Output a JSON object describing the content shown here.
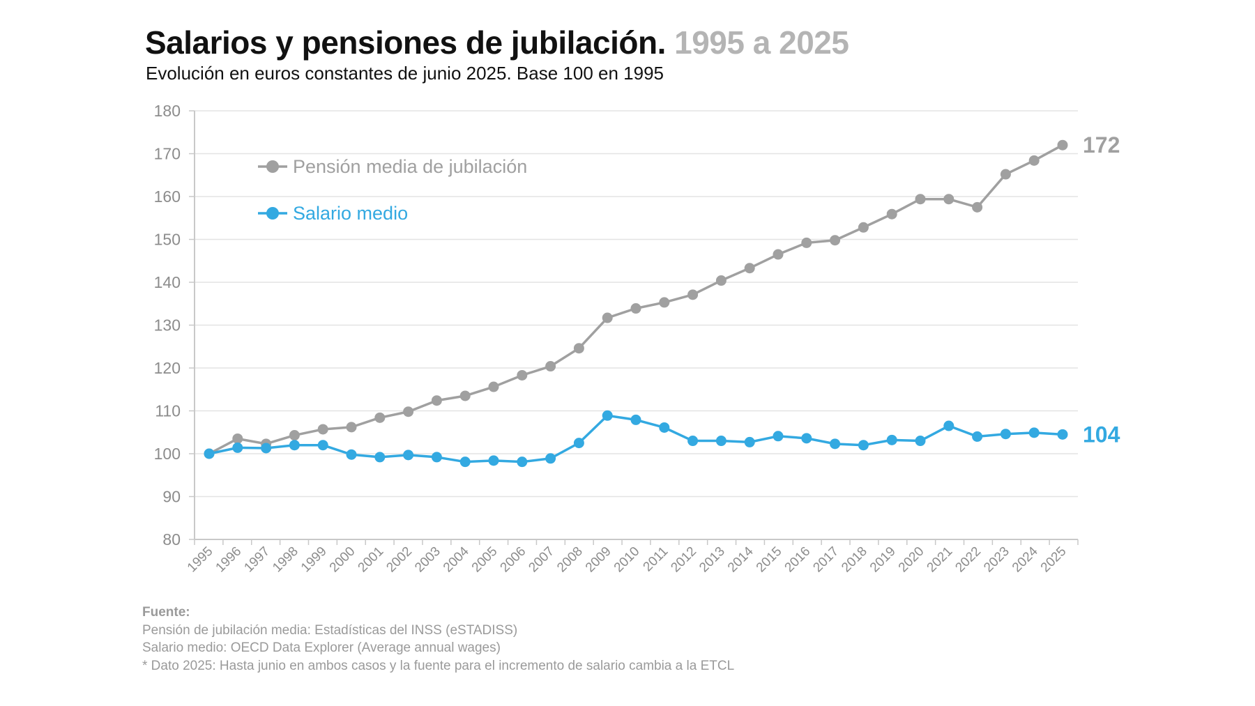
{
  "title": "Salarios y pensiones de jubilación.",
  "title_range": "1995 a 2025",
  "subtitle": "Evolución en euros constantes de junio 2025. Base 100 en 1995",
  "chart_data": {
    "type": "line",
    "x": [
      "1995",
      "1996",
      "1997",
      "1998",
      "1999",
      "2000",
      "2001",
      "2002",
      "2003",
      "2004",
      "2005",
      "2006",
      "2007",
      "2008",
      "2009",
      "2010",
      "2011",
      "2012",
      "2013",
      "2014",
      "2015",
      "2016",
      "2017",
      "2018",
      "2019",
      "2020",
      "2021",
      "2022",
      "2023",
      "2024",
      "2025"
    ],
    "ylim": [
      80,
      180
    ],
    "yticks": [
      80,
      90,
      100,
      110,
      120,
      130,
      140,
      150,
      160,
      170,
      180
    ],
    "grid": true,
    "legend": "top-left",
    "series": [
      {
        "name": "Pensión media de jubilación",
        "color": "#a0a0a0",
        "end_label": "172",
        "values": [
          100,
          103.5,
          102.3,
          104.3,
          105.7,
          106.2,
          108.4,
          109.8,
          112.4,
          113.5,
          115.6,
          118.3,
          120.4,
          124.6,
          131.7,
          133.9,
          135.3,
          137.1,
          140.4,
          143.3,
          146.5,
          149.2,
          149.8,
          152.8,
          155.9,
          159.4,
          159.4,
          157.5,
          165.2,
          168.4,
          172
        ]
      },
      {
        "name": "Salario medio",
        "color": "#33a9e1",
        "end_label": "104",
        "values": [
          100,
          101.4,
          101.3,
          102.0,
          102.0,
          99.8,
          99.2,
          99.7,
          99.2,
          98.1,
          98.4,
          98.1,
          98.9,
          102.5,
          108.9,
          107.9,
          106.1,
          103.0,
          103.0,
          102.7,
          104.1,
          103.6,
          102.3,
          102.0,
          103.2,
          103.0,
          106.5,
          104.0,
          104.6,
          104.9,
          104.5
        ]
      }
    ]
  },
  "footer": {
    "heading": "Fuente:",
    "lines": [
      "Pensión de jubilación media: Estadísticas del INSS (eSTADISS)",
      "Salario medio: OECD Data Explorer (Average annual wages)",
      "* Dato 2025: Hasta junio en ambos casos y la fuente para el incremento de salario cambia a la ETCL"
    ]
  }
}
